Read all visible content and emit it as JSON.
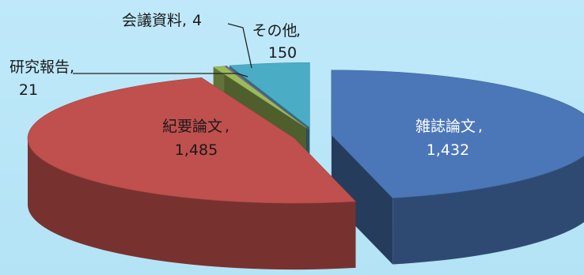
{
  "chart_data": {
    "type": "pie",
    "style": "3d-exploded",
    "slices": [
      {
        "label": "雑誌論文",
        "value": 1432,
        "display_value": "1,432",
        "color": "#4b77b8"
      },
      {
        "label": "紀要論文",
        "value": 1485,
        "display_value": "1,485",
        "color": "#c0504d"
      },
      {
        "label": "研究報告",
        "value": 21,
        "display_value": "21",
        "color": "#9bbb59"
      },
      {
        "label": "会議資料",
        "value": 4,
        "display_value": "4",
        "color": "#8064a2"
      },
      {
        "label": "その他",
        "value": 150,
        "display_value": "150",
        "color": "#4bacc6"
      }
    ]
  }
}
